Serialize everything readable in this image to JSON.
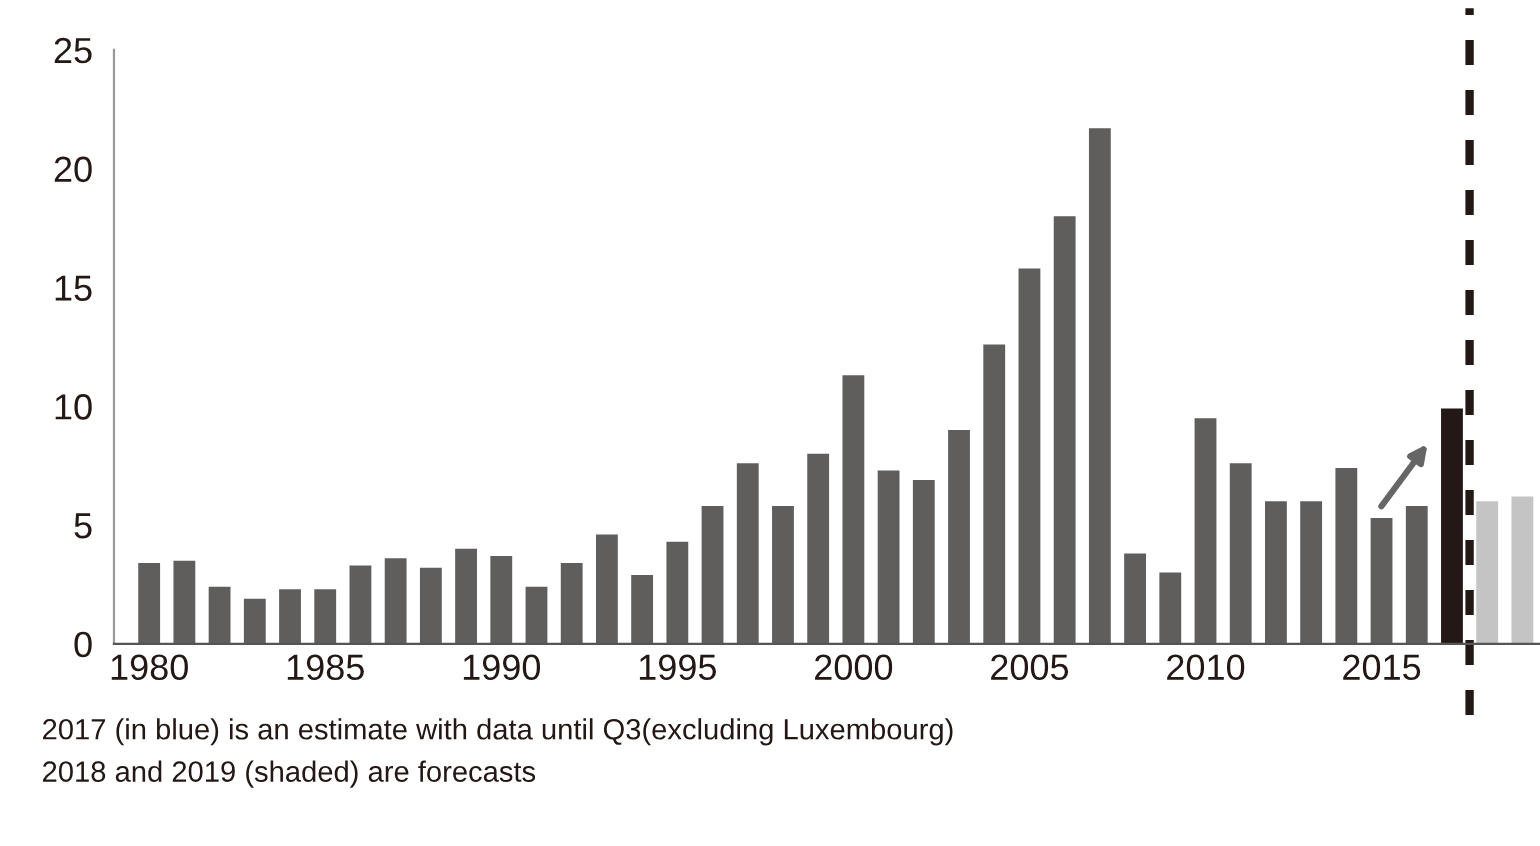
{
  "chart_data": {
    "type": "bar",
    "x": [
      1980,
      1981,
      1982,
      1983,
      1984,
      1985,
      1986,
      1987,
      1988,
      1989,
      1990,
      1991,
      1992,
      1993,
      1994,
      1995,
      1996,
      1997,
      1998,
      1999,
      2000,
      2001,
      2002,
      2003,
      2004,
      2005,
      2006,
      2007,
      2008,
      2009,
      2010,
      2011,
      2012,
      2013,
      2014,
      2015,
      2016,
      2017,
      2018,
      2019
    ],
    "values": [
      3.4,
      3.5,
      2.4,
      1.9,
      2.3,
      2.3,
      3.3,
      3.6,
      3.2,
      4.0,
      3.7,
      2.4,
      3.4,
      4.6,
      2.9,
      4.3,
      5.8,
      7.6,
      5.8,
      8.0,
      11.3,
      7.3,
      6.9,
      9.0,
      12.6,
      15.8,
      18.0,
      21.7,
      3.8,
      3.0,
      9.5,
      7.6,
      6.0,
      6.0,
      7.4,
      5.3,
      5.8,
      9.9,
      6.0,
      6.2
    ],
    "colors": [
      "#5f5e5c",
      "#5f5e5c",
      "#5f5e5c",
      "#5f5e5c",
      "#5f5e5c",
      "#5f5e5c",
      "#5f5e5c",
      "#5f5e5c",
      "#5f5e5c",
      "#5f5e5c",
      "#5f5e5c",
      "#5f5e5c",
      "#5f5e5c",
      "#5f5e5c",
      "#5f5e5c",
      "#5f5e5c",
      "#5f5e5c",
      "#5f5e5c",
      "#5f5e5c",
      "#5f5e5c",
      "#5f5e5c",
      "#5f5e5c",
      "#5f5e5c",
      "#5f5e5c",
      "#5f5e5c",
      "#5f5e5c",
      "#5f5e5c",
      "#5f5e5c",
      "#5f5e5c",
      "#5f5e5c",
      "#5f5e5c",
      "#5f5e5c",
      "#5f5e5c",
      "#5f5e5c",
      "#5f5e5c",
      "#5f5e5c",
      "#5f5e5c",
      "#231815",
      "#c4c4c4",
      "#c4c4c4"
    ],
    "xlim": [
      1979,
      2019.5
    ],
    "xticks": [
      1980,
      1985,
      1990,
      1995,
      2000,
      2005,
      2010,
      2015
    ],
    "ylim": [
      0,
      25
    ],
    "yticks": [
      0,
      5,
      10,
      15,
      20,
      25
    ],
    "grid": false,
    "legend": false,
    "ref_lines": [
      {
        "axis": "x",
        "value": 2017.5,
        "color": "#231815",
        "line_style": "dashed"
      }
    ],
    "annotations": [
      "2017 (in blue) is an estimate with data until Q3(excluding Luxembourg)",
      "2018 and 2019 (shaded) are forecasts"
    ]
  }
}
